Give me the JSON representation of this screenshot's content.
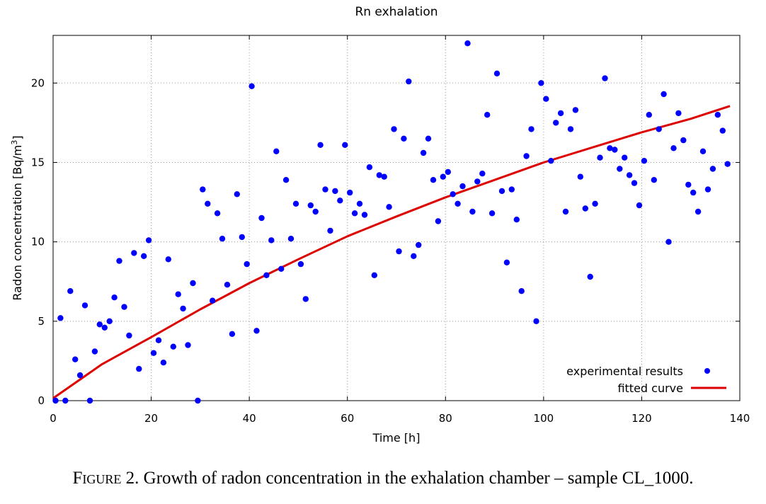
{
  "chart_data": {
    "type": "scatter",
    "title": "Rn exhalation",
    "xlabel": "Time [h]",
    "ylabel": "Radon concentration [Bq/m",
    "ylabel_sup": "3",
    "ylabel_end": "]",
    "xlim": [
      0,
      140
    ],
    "ylim": [
      0,
      23
    ],
    "xticks": [
      0,
      20,
      40,
      60,
      80,
      100,
      120,
      140
    ],
    "yticks": [
      0,
      5,
      10,
      15,
      20
    ],
    "grid": true,
    "legend_position": "bottom-right",
    "series": [
      {
        "name": "experimental results",
        "kind": "points",
        "color": "#0000ff",
        "points": [
          [
            0.5,
            0
          ],
          [
            1.5,
            5.2
          ],
          [
            2.5,
            0
          ],
          [
            3.5,
            6.9
          ],
          [
            4.5,
            2.6
          ],
          [
            5.5,
            1.6
          ],
          [
            6.5,
            6.0
          ],
          [
            7.5,
            0
          ],
          [
            8.5,
            3.1
          ],
          [
            9.5,
            4.8
          ],
          [
            10.5,
            4.6
          ],
          [
            11.5,
            5.0
          ],
          [
            12.5,
            6.5
          ],
          [
            13.5,
            8.8
          ],
          [
            14.5,
            5.9
          ],
          [
            15.5,
            4.1
          ],
          [
            16.5,
            9.3
          ],
          [
            17.5,
            2.0
          ],
          [
            18.5,
            9.1
          ],
          [
            19.5,
            10.1
          ],
          [
            20.5,
            3.0
          ],
          [
            21.5,
            3.8
          ],
          [
            22.5,
            2.4
          ],
          [
            23.5,
            8.9
          ],
          [
            24.5,
            3.4
          ],
          [
            25.5,
            6.7
          ],
          [
            26.5,
            5.8
          ],
          [
            27.5,
            3.5
          ],
          [
            28.5,
            7.4
          ],
          [
            29.5,
            0
          ],
          [
            30.5,
            13.3
          ],
          [
            31.5,
            12.4
          ],
          [
            32.5,
            6.3
          ],
          [
            33.5,
            11.8
          ],
          [
            34.5,
            10.2
          ],
          [
            35.5,
            7.3
          ],
          [
            36.5,
            4.2
          ],
          [
            37.5,
            13.0
          ],
          [
            38.5,
            10.3
          ],
          [
            39.5,
            8.6
          ],
          [
            40.5,
            19.8
          ],
          [
            41.5,
            4.4
          ],
          [
            42.5,
            11.5
          ],
          [
            43.5,
            7.9
          ],
          [
            44.5,
            10.1
          ],
          [
            45.5,
            15.7
          ],
          [
            46.5,
            8.3
          ],
          [
            47.5,
            13.9
          ],
          [
            48.5,
            10.2
          ],
          [
            49.5,
            12.4
          ],
          [
            50.5,
            8.6
          ],
          [
            51.5,
            6.4
          ],
          [
            52.5,
            12.3
          ],
          [
            53.5,
            11.9
          ],
          [
            54.5,
            16.1
          ],
          [
            55.5,
            13.3
          ],
          [
            56.5,
            10.7
          ],
          [
            57.5,
            13.2
          ],
          [
            58.5,
            12.6
          ],
          [
            59.5,
            16.1
          ],
          [
            60.5,
            13.1
          ],
          [
            61.5,
            11.8
          ],
          [
            62.5,
            12.4
          ],
          [
            63.5,
            11.7
          ],
          [
            64.5,
            14.7
          ],
          [
            65.5,
            7.9
          ],
          [
            66.5,
            14.2
          ],
          [
            67.5,
            14.1
          ],
          [
            68.5,
            12.2
          ],
          [
            69.5,
            17.1
          ],
          [
            70.5,
            9.4
          ],
          [
            71.5,
            16.5
          ],
          [
            72.5,
            20.1
          ],
          [
            73.5,
            9.1
          ],
          [
            74.5,
            9.8
          ],
          [
            75.5,
            15.6
          ],
          [
            76.5,
            16.5
          ],
          [
            77.5,
            13.9
          ],
          [
            78.5,
            11.3
          ],
          [
            79.5,
            14.1
          ],
          [
            80.5,
            14.4
          ],
          [
            81.5,
            13.0
          ],
          [
            82.5,
            12.4
          ],
          [
            83.5,
            13.5
          ],
          [
            84.5,
            22.5
          ],
          [
            85.5,
            11.9
          ],
          [
            86.5,
            13.8
          ],
          [
            87.5,
            14.3
          ],
          [
            88.5,
            18.0
          ],
          [
            89.5,
            11.8
          ],
          [
            90.5,
            20.6
          ],
          [
            91.5,
            13.2
          ],
          [
            92.5,
            8.7
          ],
          [
            93.5,
            13.3
          ],
          [
            94.5,
            11.4
          ],
          [
            95.5,
            6.9
          ],
          [
            96.5,
            15.4
          ],
          [
            97.5,
            17.1
          ],
          [
            98.5,
            5.0
          ],
          [
            99.5,
            20.0
          ],
          [
            100.5,
            19.0
          ],
          [
            101.5,
            15.1
          ],
          [
            102.5,
            17.5
          ],
          [
            103.5,
            18.1
          ],
          [
            104.5,
            11.9
          ],
          [
            105.5,
            17.1
          ],
          [
            106.5,
            18.3
          ],
          [
            107.5,
            14.1
          ],
          [
            108.5,
            12.1
          ],
          [
            109.5,
            7.8
          ],
          [
            110.5,
            12.4
          ],
          [
            111.5,
            15.3
          ],
          [
            112.5,
            20.3
          ],
          [
            113.5,
            15.9
          ],
          [
            114.5,
            15.8
          ],
          [
            115.5,
            14.6
          ],
          [
            116.5,
            15.3
          ],
          [
            117.5,
            14.2
          ],
          [
            118.5,
            13.7
          ],
          [
            119.5,
            12.3
          ],
          [
            120.5,
            15.1
          ],
          [
            121.5,
            18.0
          ],
          [
            122.5,
            13.9
          ],
          [
            123.5,
            17.1
          ],
          [
            124.5,
            19.3
          ],
          [
            125.5,
            10.0
          ],
          [
            126.5,
            15.9
          ],
          [
            127.5,
            18.1
          ],
          [
            128.5,
            16.4
          ],
          [
            129.5,
            13.6
          ],
          [
            130.5,
            13.1
          ],
          [
            131.5,
            11.9
          ],
          [
            132.5,
            15.7
          ],
          [
            133.5,
            13.3
          ],
          [
            134.5,
            14.6
          ],
          [
            135.5,
            18.0
          ],
          [
            136.5,
            17.0
          ],
          [
            137.5,
            14.9
          ]
        ]
      },
      {
        "name": "fitted curve",
        "kind": "line",
        "color": "#dd0000",
        "points": [
          [
            0,
            0.15
          ],
          [
            10,
            2.3
          ],
          [
            20,
            4.0
          ],
          [
            30,
            5.75
          ],
          [
            40,
            7.4
          ],
          [
            50,
            8.9
          ],
          [
            60,
            10.35
          ],
          [
            70,
            11.6
          ],
          [
            80,
            12.8
          ],
          [
            90,
            13.9
          ],
          [
            100,
            15.0
          ],
          [
            110,
            15.95
          ],
          [
            120,
            16.9
          ],
          [
            130,
            17.75
          ],
          [
            138,
            18.55
          ]
        ]
      }
    ]
  },
  "caption": {
    "prefix": "Figure",
    "text": " 2. Growth of radon concentration in the exhalation chamber – sample CL_1000."
  }
}
